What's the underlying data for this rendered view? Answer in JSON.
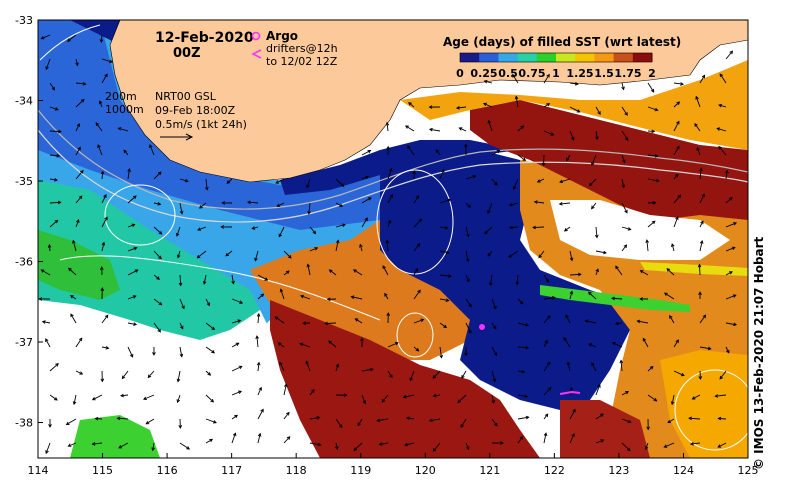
{
  "header": {
    "date": "12-Feb-2020",
    "time": "00Z"
  },
  "argo_legend": {
    "argo_label": "Argo",
    "drifters_label": "drifters@12h",
    "drifters_sub": "to 12/02 12Z"
  },
  "colorbar": {
    "title": "Age (days) of filled SST (wrt latest)",
    "ticks": [
      "0",
      "0.25",
      "0.5",
      "0.75",
      "1",
      "1.25",
      "1.5",
      "1.75",
      "2"
    ],
    "colors": [
      "#1a1a8c",
      "#2a5fd9",
      "#35a8e8",
      "#26d0a8",
      "#2bd12a",
      "#c9e61f",
      "#f5c400",
      "#f39a12",
      "#c8501a",
      "#8b0d0d"
    ]
  },
  "contours": {
    "label_200": "200m",
    "label_1000": "1000m"
  },
  "product": {
    "name": "NRT00 GSL",
    "valid": "09-Feb 18:00Z",
    "scale": "0.5m/s (1kt 24h)"
  },
  "credit": "© IMOS 13-Feb-2020 21:07 Hobart",
  "axes": {
    "lon_ticks": [
      "114",
      "115",
      "116",
      "117",
      "118",
      "119",
      "120",
      "121",
      "122",
      "123",
      "124",
      "125"
    ],
    "lat_ticks": [
      "-33",
      "-34",
      "-35",
      "-36",
      "-37",
      "-38"
    ]
  },
  "palette": {
    "land": "#fcc99b",
    "ocean_white": "#ffffff",
    "navy": "#0b1c8c",
    "argo": "#ff30ff"
  }
}
